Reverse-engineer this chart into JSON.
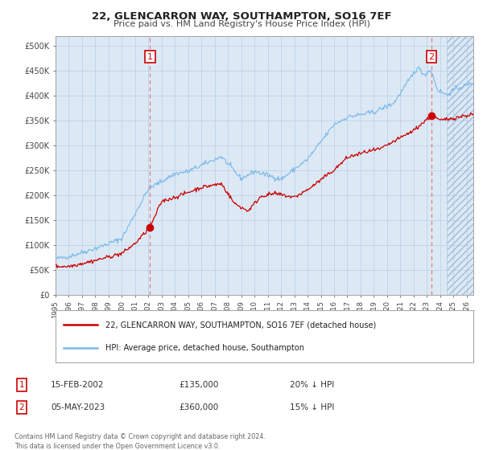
{
  "title": "22, GLENCARRON WAY, SOUTHAMPTON, SO16 7EF",
  "subtitle": "Price paid vs. HM Land Registry's House Price Index (HPI)",
  "bg_color": "#dce9f5",
  "fig_bg_color": "#ffffff",
  "hpi_color": "#7ab8e8",
  "price_color": "#cc0000",
  "marker_color": "#cc0000",
  "vline_color": "#e08080",
  "grid_color": "#b8cfe8",
  "sale1_date_num": 2002.12,
  "sale1_price": 135000,
  "sale2_date_num": 2023.35,
  "sale2_price": 360000,
  "legend_label1": "22, GLENCARRON WAY, SOUTHAMPTON, SO16 7EF (detached house)",
  "legend_label2": "HPI: Average price, detached house, Southampton",
  "table1": [
    "1",
    "15-FEB-2002",
    "£135,000",
    "20% ↓ HPI"
  ],
  "table2": [
    "2",
    "05-MAY-2023",
    "£360,000",
    "15% ↓ HPI"
  ],
  "footer": "Contains HM Land Registry data © Crown copyright and database right 2024.\nThis data is licensed under the Open Government Licence v3.0.",
  "xmin": 1995.0,
  "xmax": 2026.5,
  "ymin": 0,
  "ymax": 520000,
  "yticks": [
    0,
    50000,
    100000,
    150000,
    200000,
    250000,
    300000,
    350000,
    400000,
    450000,
    500000
  ],
  "ytick_labels": [
    "£0",
    "£50K",
    "£100K",
    "£150K",
    "£200K",
    "£250K",
    "£300K",
    "£350K",
    "£400K",
    "£450K",
    "£500K"
  ],
  "xtick_years": [
    1995,
    1996,
    1997,
    1998,
    1999,
    2000,
    2001,
    2002,
    2003,
    2004,
    2005,
    2006,
    2007,
    2008,
    2009,
    2010,
    2011,
    2012,
    2013,
    2014,
    2015,
    2016,
    2017,
    2018,
    2019,
    2020,
    2021,
    2022,
    2023,
    2024,
    2025,
    2026
  ],
  "hatch_start": 2024.5
}
